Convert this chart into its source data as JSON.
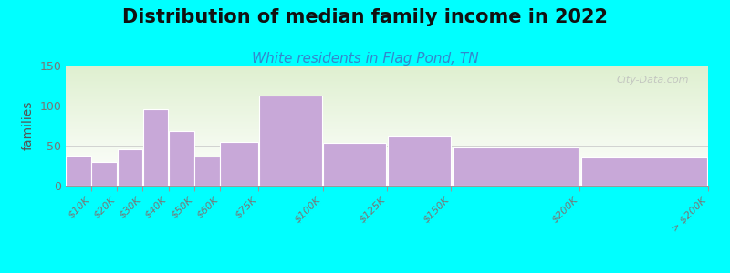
{
  "title": "Distribution of median family income in 2022",
  "subtitle": "White residents in Flag Pond, TN",
  "ylabel": "families",
  "bin_edges": [
    0,
    10,
    20,
    30,
    40,
    50,
    60,
    75,
    100,
    125,
    150,
    200,
    250
  ],
  "bin_labels": [
    "$10K",
    "$20K",
    "$30K",
    "$40K",
    "$50K",
    "$60K",
    "$75K",
    "$100K",
    "$125K",
    "$150K",
    "$200K",
    "> $200K"
  ],
  "values": [
    37,
    30,
    45,
    95,
    68,
    36,
    55,
    112,
    53,
    61,
    48,
    35
  ],
  "bar_color": "#c8a8d8",
  "bar_edgecolor": "#ffffff",
  "ylim": [
    0,
    150
  ],
  "yticks": [
    0,
    50,
    100,
    150
  ],
  "background_color": "#00ffff",
  "plot_bg_top_color": "#dff0d0",
  "plot_bg_bottom_color": "#ffffff",
  "title_fontsize": 15,
  "subtitle_fontsize": 11,
  "subtitle_color": "#3388cc",
  "ylabel_fontsize": 10,
  "watermark_text": "City-Data.com",
  "tick_label_color": "#777777",
  "tick_label_fontsize": 8
}
